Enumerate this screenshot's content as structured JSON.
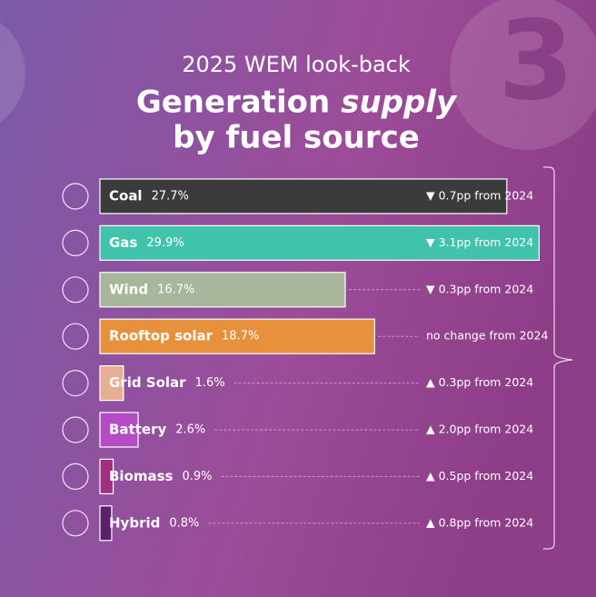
{
  "chart_data": {
    "type": "bar",
    "orientation": "horizontal",
    "badge": "3",
    "subtitle": "2025 WEM look-back",
    "title_parts": [
      "Generation",
      "supply",
      "by fuel source"
    ],
    "categories": [
      "Coal",
      "Gas",
      "Wind",
      "Rooftop solar",
      "Grid Solar",
      "Battery",
      "Biomass",
      "Hybrid"
    ],
    "values": [
      27.7,
      29.9,
      16.7,
      18.7,
      1.6,
      2.6,
      0.9,
      0.8
    ],
    "value_labels": [
      "27.7%",
      "29.9%",
      "16.7%",
      "18.7%",
      "1.6%",
      "2.6%",
      "0.9%",
      "0.8%"
    ],
    "colors": [
      "#3b3b3b",
      "#40c2ab",
      "#a8b69b",
      "#e8913c",
      "#e6ae92",
      "#b54cc5",
      "#a0307e",
      "#5c1f6c"
    ],
    "changes": [
      "▼ 0.7pp from 2024",
      "▼ 3.1pp from 2024",
      "▼ 0.3pp from 2024",
      "no change from 2024",
      "▲ 0.3pp from 2024",
      "▲ 2.0pp from 2024",
      "▲ 0.5pp from 2024",
      "▲ 0.8pp from 2024"
    ],
    "xlim": [
      0,
      30
    ]
  }
}
